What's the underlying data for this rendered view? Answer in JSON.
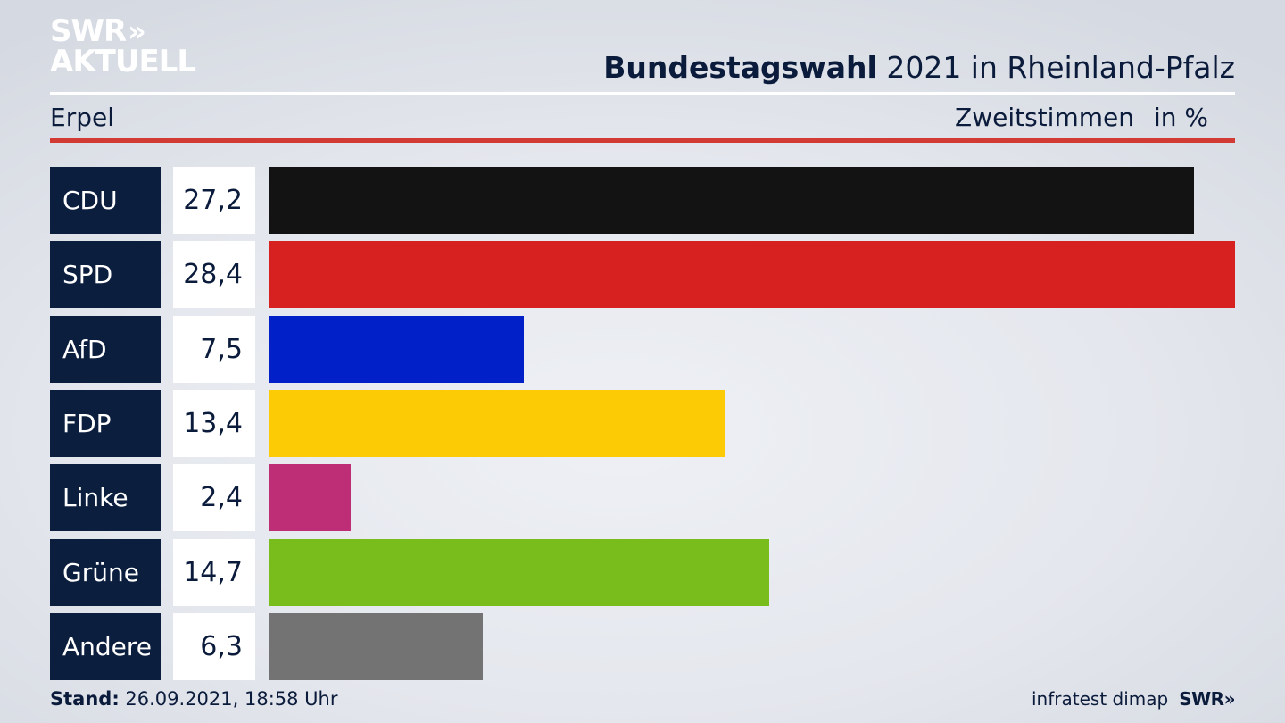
{
  "logo": {
    "line1": "SWR",
    "line1_chevrons": "»",
    "line2": "AKTUELL"
  },
  "header": {
    "title_bold": "Bundestagswahl",
    "title_rest": " 2021 in Rheinland-Pfalz"
  },
  "subheader": {
    "place": "Erpel",
    "metric": "Zweitstimmen",
    "unit": "in %"
  },
  "chart_data": {
    "type": "bar",
    "orientation": "horizontal",
    "categories": [
      "CDU",
      "SPD",
      "AfD",
      "FDP",
      "Linke",
      "Grüne",
      "Andere"
    ],
    "values": [
      27.2,
      28.4,
      7.5,
      13.4,
      2.4,
      14.7,
      6.3
    ],
    "value_labels": [
      "27,2",
      "28,4",
      "7,5",
      "13,4",
      "2,4",
      "14,7",
      "6,3"
    ],
    "colors": [
      "#131313",
      "#d72020",
      "#0120c8",
      "#fdcb05",
      "#be2e76",
      "#78bd1b",
      "#737373"
    ],
    "xlim": [
      0,
      28.4
    ],
    "grid": false,
    "legend": "none"
  },
  "footer": {
    "stand_label": "Stand:",
    "stand_value": " 26.09.2021, 18:58 Uhr",
    "source": "infratest dimap",
    "brand": "SWR»"
  }
}
